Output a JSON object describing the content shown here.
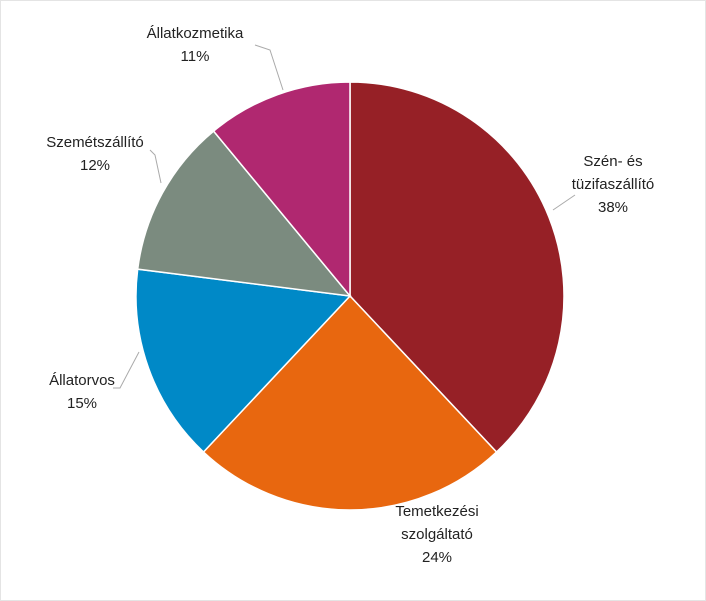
{
  "chart_data": {
    "type": "pie",
    "categories": [
      "Szén- és tüzifaszállító",
      "Temetkezési szolgáltató",
      "Állatorvos",
      "Szemétszállító",
      "Állatkozmetika"
    ],
    "values": [
      38,
      24,
      15,
      12,
      11
    ],
    "value_labels": [
      "38%",
      "24%",
      "15%",
      "12%",
      "11%"
    ],
    "colors": [
      "#962026",
      "#e8670f",
      "#0089c7",
      "#7b8b7f",
      "#b02870"
    ]
  }
}
